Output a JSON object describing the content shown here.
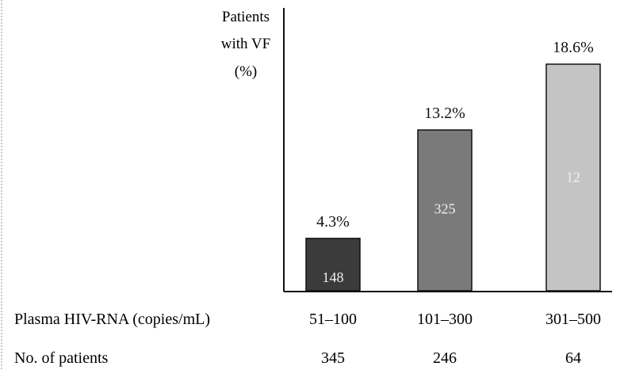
{
  "chart_data": {
    "type": "bar",
    "ylabel_lines": [
      "Patients",
      "with VF",
      "(%)"
    ],
    "xlabel": "Plasma HIV-RNA (copies/mL)",
    "categories": [
      "51–100",
      "101–300",
      "301–500"
    ],
    "values": [
      4.3,
      13.2,
      18.6
    ],
    "value_labels": [
      "4.3%",
      "13.2%",
      "18.6%"
    ],
    "inner_labels": [
      "148",
      "325",
      "12"
    ],
    "bar_colors": [
      "#3b3b3b",
      "#7a7a7a",
      "#c4c4c4"
    ],
    "ylim": [
      0,
      20
    ],
    "grid": false,
    "patients_row": {
      "label": "No. of patients",
      "values": [
        "345",
        "246",
        "64"
      ]
    }
  }
}
